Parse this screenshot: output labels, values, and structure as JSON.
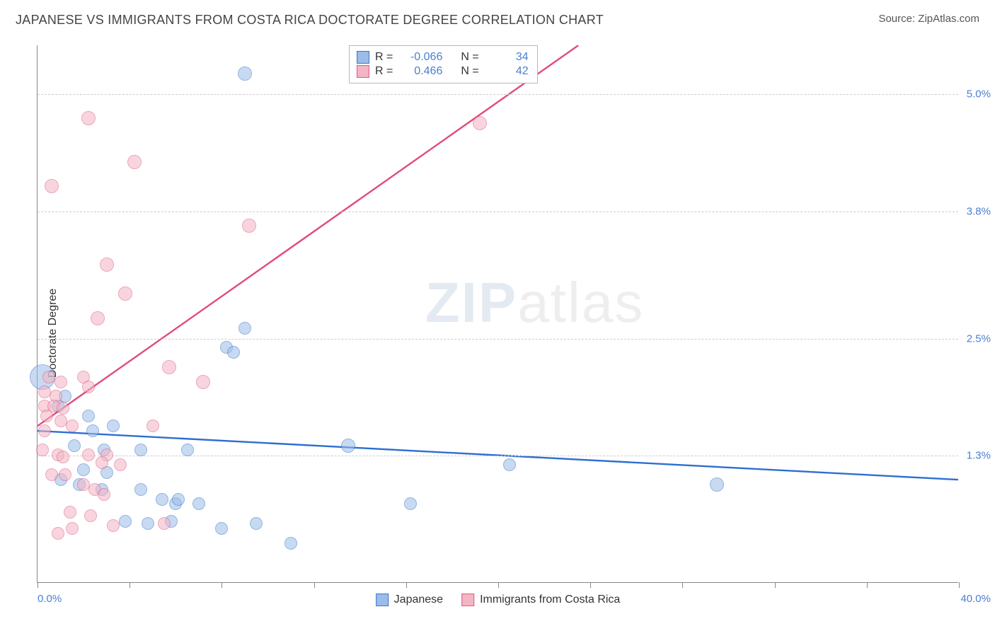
{
  "title": "JAPANESE VS IMMIGRANTS FROM COSTA RICA DOCTORATE DEGREE CORRELATION CHART",
  "source": "Source: ZipAtlas.com",
  "y_axis_label": "Doctorate Degree",
  "watermark": {
    "left": "ZIP",
    "right": "atlas"
  },
  "chart": {
    "type": "scatter",
    "background_color": "#ffffff",
    "grid_color": "#cccccc",
    "axis_color": "#888888",
    "tick_label_color": "#4a7fd4",
    "xlim": [
      0,
      40
    ],
    "ylim": [
      0,
      5.5
    ],
    "x_tick_positions": [
      0,
      4,
      8,
      12,
      16,
      20,
      24,
      28,
      32,
      36,
      40
    ],
    "x_left_label": "0.0%",
    "x_right_label": "40.0%",
    "y_gridlines": [
      1.3,
      2.5,
      3.8,
      5.0
    ],
    "y_tick_labels": [
      "1.3%",
      "2.5%",
      "3.8%",
      "5.0%"
    ],
    "series": [
      {
        "name": "Japanese",
        "fill_color": "#9bbce8",
        "stroke_color": "#3b77c6",
        "fill_opacity": 0.55,
        "stroke_width": 1.2,
        "marker_radius": 9,
        "trend": {
          "x1": 0,
          "y1": 1.55,
          "x2": 40,
          "y2": 1.05,
          "color": "#2c6fd0",
          "width": 2.4
        },
        "points": [
          {
            "x": 9.0,
            "y": 5.2,
            "r": 10
          },
          {
            "x": 9.0,
            "y": 2.6,
            "r": 9
          },
          {
            "x": 8.2,
            "y": 2.4,
            "r": 9
          },
          {
            "x": 8.5,
            "y": 2.35,
            "r": 9
          },
          {
            "x": 0.2,
            "y": 2.1,
            "r": 18
          },
          {
            "x": 1.2,
            "y": 1.9,
            "r": 9
          },
          {
            "x": 3.3,
            "y": 1.6,
            "r": 9
          },
          {
            "x": 2.4,
            "y": 1.55,
            "r": 9
          },
          {
            "x": 1.6,
            "y": 1.4,
            "r": 9
          },
          {
            "x": 4.5,
            "y": 1.35,
            "r": 9
          },
          {
            "x": 6.5,
            "y": 1.35,
            "r": 9
          },
          {
            "x": 13.5,
            "y": 1.4,
            "r": 10
          },
          {
            "x": 20.5,
            "y": 1.2,
            "r": 9
          },
          {
            "x": 29.5,
            "y": 1.0,
            "r": 10
          },
          {
            "x": 2.0,
            "y": 1.15,
            "r": 9
          },
          {
            "x": 3.0,
            "y": 1.12,
            "r": 9
          },
          {
            "x": 4.5,
            "y": 0.95,
            "r": 9
          },
          {
            "x": 5.4,
            "y": 0.85,
            "r": 9
          },
          {
            "x": 6.0,
            "y": 0.8,
            "r": 9
          },
          {
            "x": 6.1,
            "y": 0.85,
            "r": 9
          },
          {
            "x": 7.0,
            "y": 0.8,
            "r": 9
          },
          {
            "x": 16.2,
            "y": 0.8,
            "r": 9
          },
          {
            "x": 9.5,
            "y": 0.6,
            "r": 9
          },
          {
            "x": 8.0,
            "y": 0.55,
            "r": 9
          },
          {
            "x": 11.0,
            "y": 0.4,
            "r": 9
          },
          {
            "x": 5.8,
            "y": 0.62,
            "r": 9
          },
          {
            "x": 3.8,
            "y": 0.62,
            "r": 9
          },
          {
            "x": 4.8,
            "y": 0.6,
            "r": 9
          },
          {
            "x": 2.8,
            "y": 0.95,
            "r": 9
          },
          {
            "x": 2.9,
            "y": 1.35,
            "r": 9
          },
          {
            "x": 1.0,
            "y": 1.05,
            "r": 9
          },
          {
            "x": 1.8,
            "y": 1.0,
            "r": 9
          },
          {
            "x": 0.9,
            "y": 1.8,
            "r": 9
          },
          {
            "x": 2.2,
            "y": 1.7,
            "r": 9
          }
        ]
      },
      {
        "name": "Immigrants from Costa Rica",
        "fill_color": "#f3b4c4",
        "stroke_color": "#e35a82",
        "fill_opacity": 0.55,
        "stroke_width": 1.2,
        "marker_radius": 9,
        "trend": {
          "x1": 0,
          "y1": 1.6,
          "x2": 23.5,
          "y2": 5.5,
          "color": "#e14b78",
          "width": 2.4
        },
        "points": [
          {
            "x": 2.2,
            "y": 4.75,
            "r": 10
          },
          {
            "x": 19.2,
            "y": 4.7,
            "r": 10
          },
          {
            "x": 4.2,
            "y": 4.3,
            "r": 10
          },
          {
            "x": 0.6,
            "y": 4.05,
            "r": 10
          },
          {
            "x": 9.2,
            "y": 3.65,
            "r": 10
          },
          {
            "x": 3.0,
            "y": 3.25,
            "r": 10
          },
          {
            "x": 3.8,
            "y": 2.95,
            "r": 10
          },
          {
            "x": 2.6,
            "y": 2.7,
            "r": 10
          },
          {
            "x": 5.7,
            "y": 2.2,
            "r": 10
          },
          {
            "x": 7.2,
            "y": 2.05,
            "r": 10
          },
          {
            "x": 2.0,
            "y": 2.1,
            "r": 9
          },
          {
            "x": 0.5,
            "y": 2.1,
            "r": 9
          },
          {
            "x": 1.0,
            "y": 2.05,
            "r": 9
          },
          {
            "x": 2.2,
            "y": 2.0,
            "r": 9
          },
          {
            "x": 0.3,
            "y": 1.95,
            "r": 9
          },
          {
            "x": 0.8,
            "y": 1.9,
            "r": 9
          },
          {
            "x": 0.3,
            "y": 1.8,
            "r": 9
          },
          {
            "x": 0.7,
            "y": 1.8,
            "r": 9
          },
          {
            "x": 1.1,
            "y": 1.78,
            "r": 9
          },
          {
            "x": 0.4,
            "y": 1.7,
            "r": 9
          },
          {
            "x": 1.0,
            "y": 1.65,
            "r": 9
          },
          {
            "x": 0.3,
            "y": 1.55,
            "r": 9
          },
          {
            "x": 1.5,
            "y": 1.6,
            "r": 9
          },
          {
            "x": 5.0,
            "y": 1.6,
            "r": 9
          },
          {
            "x": 0.2,
            "y": 1.35,
            "r": 9
          },
          {
            "x": 0.9,
            "y": 1.3,
            "r": 9
          },
          {
            "x": 1.1,
            "y": 1.28,
            "r": 9
          },
          {
            "x": 2.2,
            "y": 1.3,
            "r": 9
          },
          {
            "x": 3.0,
            "y": 1.3,
            "r": 9
          },
          {
            "x": 2.8,
            "y": 1.22,
            "r": 9
          },
          {
            "x": 3.6,
            "y": 1.2,
            "r": 9
          },
          {
            "x": 1.2,
            "y": 1.1,
            "r": 9
          },
          {
            "x": 0.6,
            "y": 1.1,
            "r": 9
          },
          {
            "x": 2.0,
            "y": 1.0,
            "r": 9
          },
          {
            "x": 2.5,
            "y": 0.95,
            "r": 9
          },
          {
            "x": 2.9,
            "y": 0.9,
            "r": 9
          },
          {
            "x": 1.4,
            "y": 0.72,
            "r": 9
          },
          {
            "x": 2.3,
            "y": 0.68,
            "r": 9
          },
          {
            "x": 3.3,
            "y": 0.58,
            "r": 9
          },
          {
            "x": 5.5,
            "y": 0.6,
            "r": 9
          },
          {
            "x": 0.9,
            "y": 0.5,
            "r": 9
          },
          {
            "x": 1.5,
            "y": 0.55,
            "r": 9
          }
        ]
      }
    ],
    "correlation_legend": [
      {
        "swatch_fill": "#9bbce8",
        "swatch_stroke": "#3b77c6",
        "r_label": "R =",
        "r_value": "-0.066",
        "n_label": "N =",
        "n_value": "34"
      },
      {
        "swatch_fill": "#f3b4c4",
        "swatch_stroke": "#e35a82",
        "r_label": "R =",
        "r_value": "0.466",
        "n_label": "N =",
        "n_value": "42"
      }
    ],
    "bottom_legend": [
      {
        "swatch_fill": "#9bbce8",
        "swatch_stroke": "#3b77c6",
        "label": "Japanese"
      },
      {
        "swatch_fill": "#f3b4c4",
        "swatch_stroke": "#e35a82",
        "label": "Immigrants from Costa Rica"
      }
    ]
  }
}
